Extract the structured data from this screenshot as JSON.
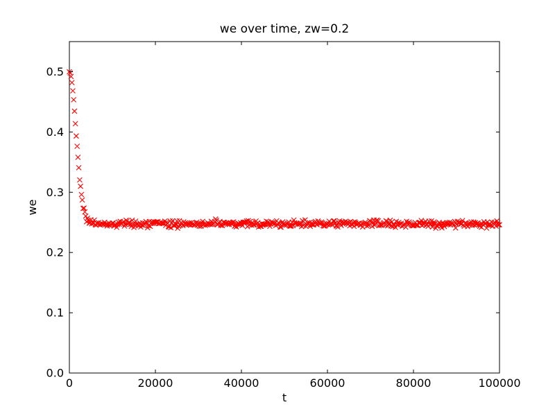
{
  "figure": {
    "background_color": "#ffffff",
    "axes_edge_color": "#000000"
  },
  "chart_data": {
    "type": "scatter",
    "title": "we over time, zw=0.2",
    "xlabel": "t",
    "ylabel": "we",
    "xlim": [
      0,
      100000
    ],
    "ylim": [
      0,
      0.55
    ],
    "xticks": [
      0,
      20000,
      40000,
      60000,
      80000,
      100000
    ],
    "xtick_labels": [
      "0",
      "20000",
      "40000",
      "60000",
      "80000",
      "100000"
    ],
    "yticks": [
      0.0,
      0.1,
      0.2,
      0.3,
      0.4,
      0.5
    ],
    "ytick_labels": [
      "0.0",
      "0.1",
      "0.2",
      "0.3",
      "0.4",
      "0.5"
    ],
    "grid": false,
    "legend": null,
    "tick_direction": "in",
    "tick_length": 5,
    "marker": {
      "shape": "x",
      "color": "#ff0000",
      "size": 7,
      "stroke_width": 1.1
    },
    "series": [
      {
        "name": "we",
        "model": "gaussian_decay_to_equilibrium",
        "t_start": 0,
        "t_end": 100000,
        "t_step": 200,
        "start_value": 0.5,
        "equilibrium": 0.2475,
        "decay_scale_t": 2200,
        "noise_sigma": 0.0028,
        "noise_ramp_t": 3000,
        "seed": 42
      }
    ],
    "readable_points": {
      "t": [
        0,
        200,
        400,
        600,
        800,
        1000,
        1200,
        1400,
        1600,
        1800,
        2000,
        2200,
        2400,
        2600,
        2800,
        3000,
        3400,
        4000,
        5000,
        10000,
        50000,
        100000
      ],
      "we": [
        0.5,
        0.498,
        0.492,
        0.482,
        0.469,
        0.453,
        0.436,
        0.417,
        0.398,
        0.378,
        0.359,
        0.342,
        0.326,
        0.312,
        0.299,
        0.289,
        0.273,
        0.259,
        0.251,
        0.248,
        0.247,
        0.248
      ]
    }
  }
}
